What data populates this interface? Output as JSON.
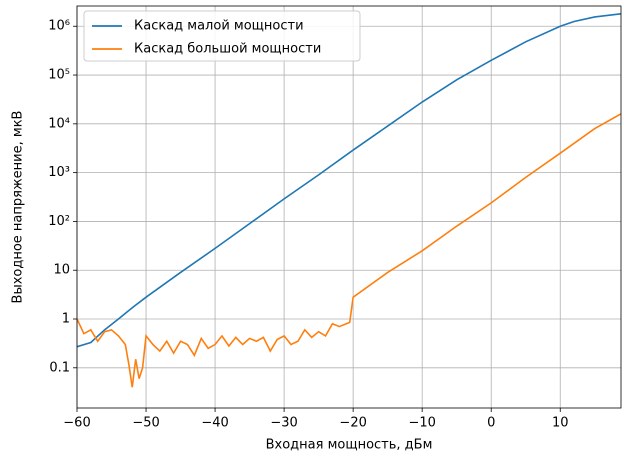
{
  "chart_data": {
    "type": "line",
    "x_label": "Входная мощность, дБм",
    "y_label": "Выходное напряжение, мкВ",
    "log_y": true,
    "grid": true,
    "legend": "upper left",
    "xlim": [
      -60,
      18.8
    ],
    "ylim": [
      0.015,
      2600000
    ],
    "xticks": [
      {
        "value": -60,
        "label": "−60"
      },
      {
        "value": -50,
        "label": "−50"
      },
      {
        "value": -40,
        "label": "−40"
      },
      {
        "value": -30,
        "label": "−30"
      },
      {
        "value": -20,
        "label": "−20"
      },
      {
        "value": -10,
        "label": "−10"
      },
      0,
      10
    ],
    "yticks": [
      0.1,
      1,
      10,
      {
        "value": 100,
        "label": "10²"
      },
      {
        "value": 1000,
        "label": "10³"
      },
      {
        "value": 10000,
        "label": "10⁴"
      },
      {
        "value": 100000,
        "label": "10⁵"
      },
      {
        "value": 1000000,
        "label": "10⁶"
      }
    ],
    "series": [
      {
        "name": "Каскад малой мощности",
        "color": "#1f77b4",
        "x": [
          -60,
          -58,
          -56,
          -54,
          -52,
          -50,
          -45,
          -40,
          -35,
          -30,
          -25,
          -20,
          -15,
          -10,
          -5,
          0,
          5,
          10,
          12,
          15,
          18.8
        ],
        "values": [
          0.27,
          0.33,
          0.6,
          1.0,
          1.7,
          2.8,
          9,
          28,
          90,
          290,
          900,
          2900,
          9000,
          28000,
          80000,
          200000,
          480000,
          1000000,
          1250000,
          1550000,
          1800000
        ]
      },
      {
        "name": "Каскад большой мощности",
        "color": "#ff7f0e",
        "x": [
          -60,
          -59,
          -58,
          -57,
          -56,
          -55,
          -54,
          -53,
          -52.5,
          -52,
          -51.5,
          -51,
          -50.5,
          -50,
          -49,
          -48,
          -47,
          -46,
          -45,
          -44,
          -43,
          -42,
          -41,
          -40,
          -39,
          -38,
          -37,
          -36,
          -35,
          -34,
          -33,
          -32,
          -31,
          -30,
          -29,
          -28,
          -27,
          -26,
          -25,
          -24,
          -23,
          -22,
          -21,
          -20.5,
          -20,
          -15,
          -10,
          -5,
          0,
          5,
          10,
          15,
          18.8
        ],
        "values": [
          1.0,
          0.5,
          0.6,
          0.35,
          0.55,
          0.6,
          0.45,
          0.3,
          0.12,
          0.04,
          0.15,
          0.06,
          0.1,
          0.45,
          0.3,
          0.22,
          0.35,
          0.2,
          0.35,
          0.3,
          0.18,
          0.4,
          0.25,
          0.3,
          0.45,
          0.28,
          0.42,
          0.3,
          0.4,
          0.35,
          0.42,
          0.22,
          0.38,
          0.45,
          0.3,
          0.35,
          0.6,
          0.42,
          0.55,
          0.45,
          0.8,
          0.7,
          0.8,
          0.85,
          2.8,
          9,
          25,
          80,
          240,
          800,
          2500,
          8000,
          16000
        ]
      }
    ]
  }
}
